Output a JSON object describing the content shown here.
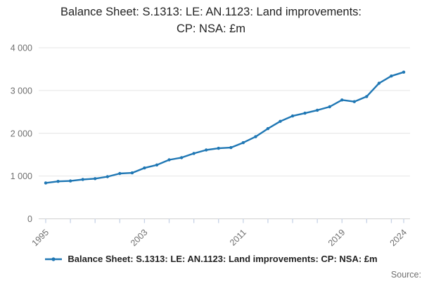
{
  "title_lines": [
    "Balance Sheet: S.1313: LE: AN.1123: Land improvements:",
    "CP: NSA: £m"
  ],
  "legend": {
    "label": "Balance Sheet: S.1313: LE: AN.1123: Land improvements: CP: NSA: £m"
  },
  "source_label": "Source:",
  "colors": {
    "line": "#1f77b4",
    "grid": "#e4e4e4",
    "axis_line": "#d0d0d0",
    "axis_tick": "#c6d2e6",
    "tick_text": "#6f6f6f",
    "title_text": "#232323"
  },
  "chart_data": {
    "type": "line",
    "title": "Balance Sheet: S.1313: LE: AN.1123: Land improvements: CP: NSA: £m",
    "xlabel": "",
    "ylabel": "",
    "grid": "horizontal",
    "legend_position": "bottom",
    "ylim": [
      0,
      4000
    ],
    "yticks": [
      {
        "value": 0,
        "label": "0"
      },
      {
        "value": 1000,
        "label": "1 000"
      },
      {
        "value": 2000,
        "label": "2 000"
      },
      {
        "value": 3000,
        "label": "3 000"
      },
      {
        "value": 4000,
        "label": "4 000"
      }
    ],
    "xticks_labeled": [
      1995,
      2003,
      2011,
      2019,
      2024
    ],
    "xtick_minor_step": 2,
    "x": [
      1995,
      1996,
      1997,
      1998,
      1999,
      2000,
      2001,
      2002,
      2003,
      2004,
      2005,
      2006,
      2007,
      2008,
      2009,
      2010,
      2011,
      2012,
      2013,
      2014,
      2015,
      2016,
      2017,
      2018,
      2019,
      2020,
      2021,
      2022,
      2023,
      2024
    ],
    "series": [
      {
        "name": "Balance Sheet: S.1313: LE: AN.1123: Land improvements: CP: NSA: £m",
        "values": [
          840,
          875,
          885,
          920,
          940,
          985,
          1060,
          1075,
          1190,
          1260,
          1380,
          1430,
          1530,
          1610,
          1650,
          1665,
          1780,
          1920,
          2110,
          2280,
          2405,
          2470,
          2540,
          2620,
          2780,
          2740,
          2860,
          3170,
          3340,
          3430
        ]
      }
    ]
  }
}
